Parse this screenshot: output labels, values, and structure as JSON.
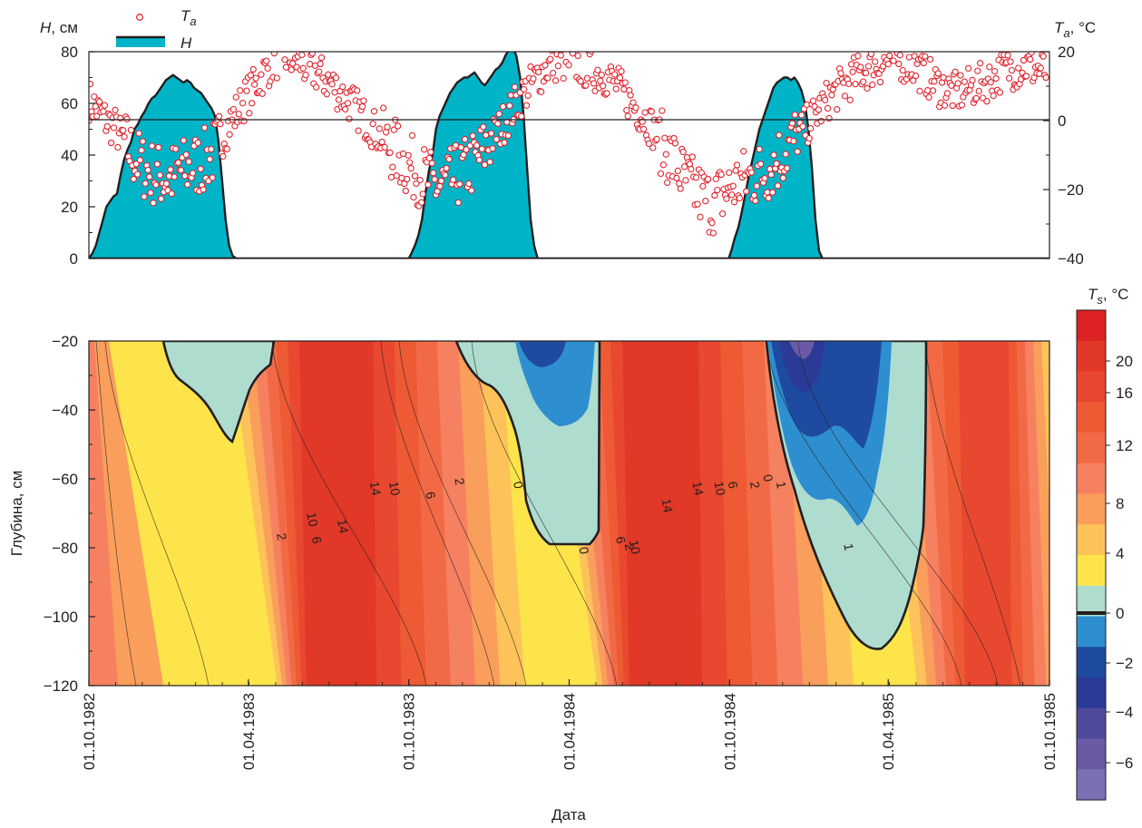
{
  "colors": {
    "snow_fill": "#00b4c8",
    "snow_line": "#231f20",
    "air_marker": "#e0232d",
    "axis": "#231f20",
    "scale": [
      "#7d6fb4",
      "#6a5aa6",
      "#4f4a9c",
      "#2a3a96",
      "#1e4aa0",
      "#2e8fd0",
      "#aedccf",
      "#fde44a",
      "#fdc35a",
      "#fa9e5c",
      "#f68160",
      "#f26a45",
      "#ee5a33",
      "#e84830",
      "#e13828",
      "#dc2224"
    ]
  },
  "chart_data": [
    {
      "type": "line",
      "name": "snow_and_air",
      "title": "",
      "ylabel_left": {
        "sym": "H",
        "unit": ", см"
      },
      "ylabel_right": {
        "sym": "T",
        "sub": "a",
        "unit": ", °C"
      },
      "ylim_left": [
        0,
        80
      ],
      "ylim_right": [
        -40,
        20
      ],
      "yticks_left": [
        "0",
        "20",
        "40",
        "60",
        "80"
      ],
      "yticks_right": [
        "−40",
        "−20",
        "0",
        "20"
      ],
      "legend": {
        "position": "top-left",
        "entries": [
          {
            "sym": "T",
            "sub": "a",
            "marker": "circle"
          },
          {
            "sym": "H",
            "marker": "area"
          }
        ]
      },
      "zero_line_Ta": 0,
      "series_H": [
        [
          0,
          0
        ],
        [
          4,
          2
        ],
        [
          8,
          5
        ],
        [
          12,
          10
        ],
        [
          16,
          15
        ],
        [
          20,
          20
        ],
        [
          24,
          22
        ],
        [
          28,
          24
        ],
        [
          32,
          25
        ],
        [
          36,
          32
        ],
        [
          40,
          38
        ],
        [
          44,
          42
        ],
        [
          48,
          45
        ],
        [
          52,
          50
        ],
        [
          56,
          52
        ],
        [
          60,
          55
        ],
        [
          64,
          57
        ],
        [
          68,
          60
        ],
        [
          72,
          62
        ],
        [
          76,
          63
        ],
        [
          80,
          65
        ],
        [
          84,
          67
        ],
        [
          88,
          69
        ],
        [
          92,
          70
        ],
        [
          96,
          71
        ],
        [
          100,
          70
        ],
        [
          104,
          69
        ],
        [
          108,
          68
        ],
        [
          112,
          69
        ],
        [
          116,
          68
        ],
        [
          120,
          66
        ],
        [
          124,
          65
        ],
        [
          128,
          64
        ],
        [
          132,
          62
        ],
        [
          136,
          60
        ],
        [
          140,
          58
        ],
        [
          144,
          55
        ],
        [
          148,
          45
        ],
        [
          152,
          30
        ],
        [
          156,
          15
        ],
        [
          160,
          5
        ],
        [
          164,
          1
        ],
        [
          168,
          0
        ],
        [
          365,
          0
        ],
        [
          368,
          2
        ],
        [
          372,
          5
        ],
        [
          376,
          9
        ],
        [
          380,
          15
        ],
        [
          384,
          25
        ],
        [
          388,
          34
        ],
        [
          392,
          40
        ],
        [
          396,
          50
        ],
        [
          400,
          55
        ],
        [
          404,
          58
        ],
        [
          408,
          61
        ],
        [
          412,
          64
        ],
        [
          416,
          66
        ],
        [
          420,
          68
        ],
        [
          424,
          69
        ],
        [
          428,
          70
        ],
        [
          432,
          70
        ],
        [
          436,
          71
        ],
        [
          440,
          72
        ],
        [
          444,
          70
        ],
        [
          448,
          68
        ],
        [
          452,
          67
        ],
        [
          456,
          69
        ],
        [
          460,
          71
        ],
        [
          464,
          73
        ],
        [
          468,
          74
        ],
        [
          472,
          76
        ],
        [
          476,
          79
        ],
        [
          480,
          81
        ],
        [
          484,
          82
        ],
        [
          488,
          78
        ],
        [
          492,
          70
        ],
        [
          496,
          55
        ],
        [
          500,
          35
        ],
        [
          504,
          15
        ],
        [
          508,
          5
        ],
        [
          512,
          0
        ],
        [
          730,
          0
        ],
        [
          733,
          3
        ],
        [
          737,
          8
        ],
        [
          741,
          12
        ],
        [
          745,
          18
        ],
        [
          749,
          25
        ],
        [
          753,
          32
        ],
        [
          757,
          38
        ],
        [
          761,
          44
        ],
        [
          765,
          50
        ],
        [
          769,
          54
        ],
        [
          773,
          58
        ],
        [
          777,
          62
        ],
        [
          781,
          66
        ],
        [
          785,
          68
        ],
        [
          789,
          69
        ],
        [
          793,
          70
        ],
        [
          797,
          70
        ],
        [
          801,
          69
        ],
        [
          805,
          70
        ],
        [
          809,
          68
        ],
        [
          813,
          65
        ],
        [
          817,
          60
        ],
        [
          821,
          50
        ],
        [
          825,
          35
        ],
        [
          829,
          15
        ],
        [
          833,
          3
        ],
        [
          837,
          0
        ],
        [
          1095,
          0
        ]
      ],
      "series_Ta": [
        [
          0,
          6
        ],
        [
          10,
          3
        ],
        [
          20,
          0
        ],
        [
          30,
          -2
        ],
        [
          40,
          -6
        ],
        [
          50,
          -10
        ],
        [
          60,
          -13
        ],
        [
          70,
          -15
        ],
        [
          80,
          -16
        ],
        [
          90,
          -17
        ],
        [
          100,
          -15
        ],
        [
          110,
          -14
        ],
        [
          120,
          -13
        ],
        [
          130,
          -12
        ],
        [
          140,
          -10
        ],
        [
          150,
          -6
        ],
        [
          160,
          -1
        ],
        [
          170,
          3
        ],
        [
          180,
          7
        ],
        [
          190,
          10
        ],
        [
          200,
          14
        ],
        [
          210,
          17
        ],
        [
          220,
          19
        ],
        [
          230,
          18
        ],
        [
          240,
          17
        ],
        [
          250,
          15
        ],
        [
          260,
          14
        ],
        [
          270,
          12
        ],
        [
          280,
          10
        ],
        [
          290,
          7
        ],
        [
          300,
          5
        ],
        [
          310,
          2
        ],
        [
          320,
          -1
        ],
        [
          330,
          -4
        ],
        [
          340,
          -7
        ],
        [
          350,
          -9
        ],
        [
          360,
          -12
        ],
        [
          370,
          -14
        ],
        [
          380,
          -16
        ],
        [
          390,
          -18
        ],
        [
          400,
          -19
        ],
        [
          410,
          -18
        ],
        [
          420,
          -16
        ],
        [
          430,
          -14
        ],
        [
          440,
          -12
        ],
        [
          450,
          -9
        ],
        [
          460,
          -5
        ],
        [
          470,
          -2
        ],
        [
          480,
          2
        ],
        [
          490,
          6
        ],
        [
          500,
          9
        ],
        [
          510,
          12
        ],
        [
          520,
          15
        ],
        [
          530,
          17
        ],
        [
          540,
          17
        ],
        [
          550,
          17
        ],
        [
          560,
          16
        ],
        [
          570,
          15
        ],
        [
          580,
          14
        ],
        [
          590,
          13
        ],
        [
          600,
          11
        ],
        [
          610,
          8
        ],
        [
          620,
          5
        ],
        [
          630,
          2
        ],
        [
          640,
          -1
        ],
        [
          650,
          -5
        ],
        [
          660,
          -9
        ],
        [
          670,
          -13
        ],
        [
          680,
          -17
        ],
        [
          690,
          -20
        ],
        [
          700,
          -22
        ],
        [
          710,
          -24
        ],
        [
          720,
          -22
        ],
        [
          730,
          -20
        ],
        [
          740,
          -18
        ],
        [
          750,
          -17
        ],
        [
          760,
          -16
        ],
        [
          770,
          -15
        ],
        [
          780,
          -13
        ],
        [
          790,
          -10
        ],
        [
          800,
          -7
        ],
        [
          810,
          -4
        ],
        [
          820,
          -1
        ],
        [
          830,
          2
        ],
        [
          840,
          5
        ],
        [
          850,
          8
        ],
        [
          860,
          10
        ],
        [
          870,
          12
        ],
        [
          880,
          14
        ],
        [
          890,
          15
        ],
        [
          900,
          16
        ],
        [
          910,
          17
        ],
        [
          920,
          18
        ],
        [
          930,
          17
        ],
        [
          940,
          16
        ],
        [
          950,
          14
        ],
        [
          960,
          12
        ],
        [
          970,
          10
        ],
        [
          980,
          9
        ],
        [
          990,
          8
        ],
        [
          1000,
          9
        ],
        [
          1010,
          10
        ],
        [
          1020,
          11
        ],
        [
          1030,
          12
        ],
        [
          1040,
          14
        ],
        [
          1050,
          15
        ],
        [
          1060,
          15
        ],
        [
          1070,
          16
        ],
        [
          1080,
          15
        ],
        [
          1095,
          14
        ]
      ]
    },
    {
      "type": "heatmap",
      "name": "soil_temperature",
      "title": "",
      "ylabel": "Глубина, см",
      "xlabel": "Дата",
      "ylim": [
        -120,
        -20
      ],
      "yticks": [
        "−20",
        "−40",
        "−60",
        "−80",
        "−100",
        "−120"
      ],
      "xticks": [
        "01.10.1982",
        "01.04.1983",
        "01.10.1983",
        "01.04.1984",
        "01.10.1984",
        "01.04.1985",
        "01.10.1985"
      ],
      "xtick_days": [
        0,
        182,
        365,
        548,
        731,
        912,
        1096
      ],
      "colorbar_label": {
        "sym": "T",
        "sub": "s",
        "unit": ", °C"
      },
      "colorbar_ticks": [
        "20",
        "16",
        "12",
        "8",
        "4",
        "0",
        "−2",
        "−4",
        "−6"
      ],
      "colorbar_bins": [
        "-7..-6",
        "-6..-5",
        "-5..-4",
        "-4..-3",
        "-3..-2",
        "-2..-1",
        "-1..0",
        "0..1",
        "1..4",
        "4..6",
        "6..8",
        "8..10",
        "10..12",
        "12..16",
        "16..20",
        "20..22"
      ],
      "contour_labels": [
        {
          "label": "2",
          "day": 215,
          "depth": -77
        },
        {
          "label": "10",
          "day": 250,
          "depth": -72
        },
        {
          "label": "6",
          "day": 255,
          "depth": -78
        },
        {
          "label": "14",
          "day": 285,
          "depth": -74
        },
        {
          "label": "14",
          "day": 322,
          "depth": -63
        },
        {
          "label": "10",
          "day": 344,
          "depth": -63
        },
        {
          "label": "6",
          "day": 385,
          "depth": -65
        },
        {
          "label": "2",
          "day": 418,
          "depth": -61
        },
        {
          "label": "0",
          "day": 485,
          "depth": -62
        },
        {
          "label": "0",
          "day": 560,
          "depth": -81
        },
        {
          "label": "6",
          "day": 602,
          "depth": -78
        },
        {
          "label": "2",
          "day": 612,
          "depth": -80
        },
        {
          "label": "10",
          "day": 618,
          "depth": -80
        },
        {
          "label": "14",
          "day": 655,
          "depth": -68
        },
        {
          "label": "14",
          "day": 690,
          "depth": -63
        },
        {
          "label": "10",
          "day": 715,
          "depth": -63
        },
        {
          "label": "6",
          "day": 730,
          "depth": -62
        },
        {
          "label": "2",
          "day": 755,
          "depth": -62
        },
        {
          "label": "0",
          "day": 770,
          "depth": -60
        },
        {
          "label": "1",
          "day": 785,
          "depth": -62
        },
        {
          "label": "1",
          "day": 862,
          "depth": -80
        }
      ]
    }
  ]
}
